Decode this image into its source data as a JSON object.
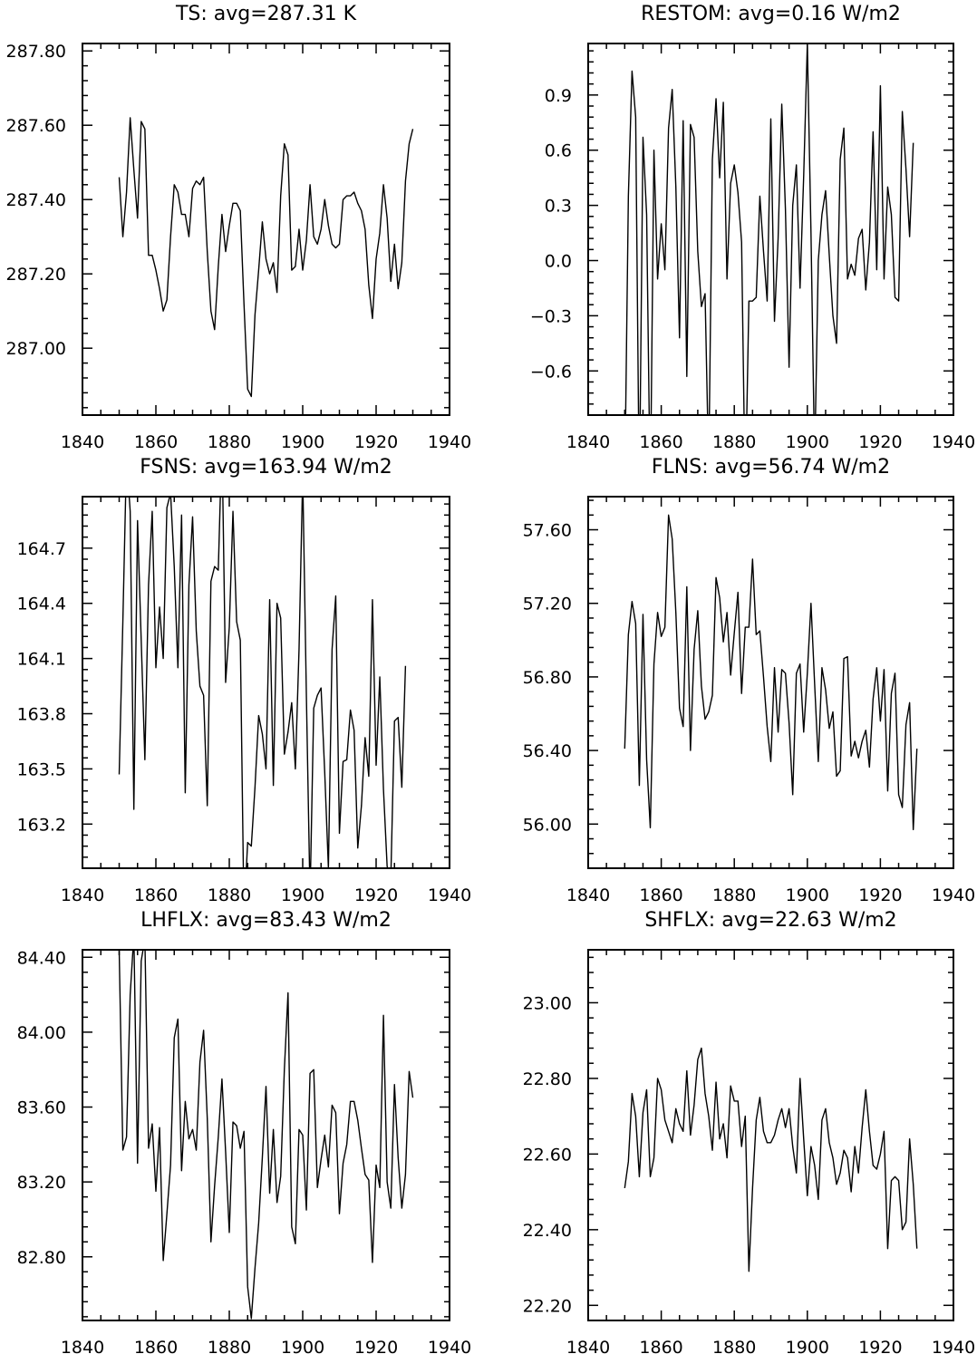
{
  "chart_data": [
    {
      "type": "line",
      "title": "TS: avg=287.31 K",
      "xlim": [
        1840,
        1940
      ],
      "ylim": [
        286.82,
        287.82
      ],
      "xticks": [
        1840,
        1860,
        1880,
        1900,
        1920,
        1940
      ],
      "yticks": [
        {
          "v": 287.0,
          "label": "287.00"
        },
        {
          "v": 287.2,
          "label": "287.20"
        },
        {
          "v": 287.4,
          "label": "287.40"
        },
        {
          "v": 287.6,
          "label": "287.60"
        },
        {
          "v": 287.8,
          "label": "287.80"
        }
      ],
      "x0": 1850,
      "y": [
        287.46,
        287.3,
        287.42,
        287.62,
        287.48,
        287.35,
        287.61,
        287.59,
        287.25,
        287.25,
        287.21,
        287.16,
        287.1,
        287.13,
        287.3,
        287.44,
        287.42,
        287.36,
        287.36,
        287.3,
        287.43,
        287.45,
        287.44,
        287.46,
        287.26,
        287.1,
        287.05,
        287.22,
        287.36,
        287.26,
        287.33,
        287.39,
        287.39,
        287.37,
        287.12,
        286.89,
        286.87,
        287.09,
        287.21,
        287.34,
        287.24,
        287.2,
        287.23,
        287.15,
        287.41,
        287.55,
        287.52,
        287.21,
        287.22,
        287.32,
        287.21,
        287.29,
        287.44,
        287.3,
        287.28,
        287.32,
        287.4,
        287.33,
        287.28,
        287.27,
        287.28,
        287.4,
        287.41,
        287.41,
        287.42,
        287.39,
        287.37,
        287.32,
        287.17,
        287.08,
        287.24,
        287.31,
        287.44,
        287.35,
        287.18,
        287.28,
        287.16,
        287.23,
        287.45,
        287.55,
        287.59
      ]
    },
    {
      "type": "line",
      "title": "RESTOM: avg=0.16 W/m2",
      "xlim": [
        1840,
        1940
      ],
      "ylim": [
        -0.84,
        1.18
      ],
      "xticks": [
        1840,
        1860,
        1880,
        1900,
        1920,
        1940
      ],
      "yticks": [
        {
          "v": -0.6,
          "label": "−0.6"
        },
        {
          "v": -0.3,
          "label": "−0.3"
        },
        {
          "v": 0.0,
          "label": "0.0"
        },
        {
          "v": 0.3,
          "label": "0.3"
        },
        {
          "v": 0.6,
          "label": "0.6"
        },
        {
          "v": 0.9,
          "label": "0.9"
        }
      ],
      "x0": 1850,
      "y": [
        -1.25,
        0.35,
        1.03,
        0.78,
        -1.3,
        0.67,
        0.25,
        -1.3,
        0.6,
        -0.1,
        0.2,
        -0.05,
        0.72,
        0.93,
        0.4,
        -0.42,
        0.76,
        -0.63,
        0.74,
        0.67,
        0.05,
        -0.25,
        -0.18,
        -1.15,
        0.55,
        0.88,
        0.45,
        0.86,
        -0.1,
        0.42,
        0.52,
        0.37,
        0.1,
        -1.3,
        -0.22,
        -0.22,
        -0.2,
        0.35,
        0.05,
        -0.22,
        0.77,
        -0.33,
        0.12,
        0.85,
        0.28,
        -0.58,
        0.3,
        0.52,
        -0.15,
        0.46,
        1.18,
        0.15,
        -1.1,
        0.0,
        0.25,
        0.38,
        0.03,
        -0.3,
        -0.45,
        0.55,
        0.72,
        -0.1,
        -0.02,
        -0.08,
        0.12,
        0.17,
        -0.16,
        0.1,
        0.7,
        -0.05,
        0.95,
        -0.1,
        0.4,
        0.25,
        -0.2,
        -0.22,
        0.81,
        0.5,
        0.13,
        0.64
      ],
      "clip_note": ""
    },
    {
      "type": "line",
      "title": "FSNS: avg=163.94 W/m2",
      "xlim": [
        1840,
        1940
      ],
      "ylim": [
        162.96,
        164.98
      ],
      "xticks": [
        1840,
        1860,
        1880,
        1900,
        1920,
        1940
      ],
      "yticks": [
        {
          "v": 163.2,
          "label": "163.2"
        },
        {
          "v": 163.5,
          "label": "163.5"
        },
        {
          "v": 163.8,
          "label": "163.8"
        },
        {
          "v": 164.1,
          "label": "164.1"
        },
        {
          "v": 164.4,
          "label": "164.4"
        },
        {
          "v": 164.7,
          "label": "164.7"
        }
      ],
      "x0": 1850,
      "y": [
        163.47,
        164.3,
        165.2,
        164.9,
        163.28,
        164.85,
        164.2,
        163.55,
        164.5,
        164.9,
        164.05,
        164.38,
        164.1,
        164.92,
        165.0,
        164.6,
        164.05,
        164.88,
        163.37,
        164.5,
        164.87,
        164.25,
        163.95,
        163.9,
        163.3,
        164.52,
        164.6,
        164.58,
        165.3,
        163.97,
        164.27,
        164.9,
        164.3,
        164.2,
        162.7,
        163.1,
        163.08,
        163.4,
        163.79,
        163.69,
        163.5,
        164.42,
        163.41,
        164.4,
        164.32,
        163.58,
        163.7,
        163.86,
        163.5,
        164.15,
        165.1,
        163.9,
        162.8,
        163.83,
        163.9,
        163.94,
        163.48,
        162.96,
        164.15,
        164.44,
        163.15,
        163.54,
        163.55,
        163.82,
        163.71,
        163.07,
        163.3,
        163.67,
        163.46,
        164.42,
        163.52,
        164.0,
        163.39,
        162.97,
        162.9,
        163.76,
        163.78,
        163.4,
        164.06
      ]
    },
    {
      "type": "line",
      "title": "FLNS: avg=56.74 W/m2",
      "xlim": [
        1840,
        1940
      ],
      "ylim": [
        55.76,
        57.78
      ],
      "xticks": [
        1840,
        1860,
        1880,
        1900,
        1920,
        1940
      ],
      "yticks": [
        {
          "v": 56.0,
          "label": "56.00"
        },
        {
          "v": 56.4,
          "label": "56.40"
        },
        {
          "v": 56.8,
          "label": "56.80"
        },
        {
          "v": 57.2,
          "label": "57.20"
        },
        {
          "v": 57.6,
          "label": "57.60"
        }
      ],
      "x0": 1850,
      "y": [
        56.41,
        57.03,
        57.21,
        57.09,
        56.21,
        57.14,
        56.35,
        55.98,
        56.87,
        57.15,
        57.02,
        57.07,
        57.68,
        57.55,
        57.15,
        56.63,
        56.53,
        57.29,
        56.4,
        56.95,
        57.16,
        56.75,
        56.57,
        56.61,
        56.7,
        57.34,
        57.23,
        56.99,
        57.15,
        56.81,
        57.04,
        57.26,
        56.71,
        57.07,
        57.07,
        57.44,
        57.03,
        57.05,
        56.8,
        56.53,
        56.34,
        56.85,
        56.5,
        56.84,
        56.82,
        56.55,
        56.16,
        56.82,
        56.87,
        56.5,
        56.82,
        57.2,
        56.76,
        56.34,
        56.85,
        56.73,
        56.52,
        56.61,
        56.26,
        56.29,
        56.9,
        56.91,
        56.37,
        56.45,
        56.36,
        56.45,
        56.51,
        56.31,
        56.68,
        56.85,
        56.56,
        56.84,
        56.18,
        56.71,
        56.82,
        56.16,
        56.09,
        56.54,
        56.66,
        55.97,
        56.41
      ]
    },
    {
      "type": "line",
      "title": "LHFLX: avg=83.43 W/m2",
      "xlim": [
        1840,
        1940
      ],
      "ylim": [
        82.46,
        84.44
      ],
      "xticks": [
        1840,
        1860,
        1880,
        1900,
        1920,
        1940
      ],
      "yticks": [
        {
          "v": 82.8,
          "label": "82.80"
        },
        {
          "v": 83.2,
          "label": "83.20"
        },
        {
          "v": 83.6,
          "label": "83.60"
        },
        {
          "v": 84.0,
          "label": "84.00"
        },
        {
          "v": 84.4,
          "label": "84.40"
        }
      ],
      "x0": 1850,
      "y": [
        84.44,
        83.37,
        83.44,
        84.2,
        84.52,
        83.3,
        84.38,
        84.5,
        83.38,
        83.51,
        83.15,
        83.49,
        82.78,
        83.03,
        83.29,
        83.97,
        84.07,
        83.26,
        83.63,
        83.43,
        83.48,
        83.37,
        83.84,
        84.01,
        83.54,
        82.88,
        83.18,
        83.44,
        83.75,
        83.36,
        82.93,
        83.52,
        83.5,
        83.38,
        83.47,
        82.64,
        82.47,
        82.74,
        82.98,
        83.33,
        83.71,
        83.14,
        83.48,
        83.09,
        83.23,
        83.8,
        84.21,
        82.96,
        82.87,
        83.48,
        83.45,
        83.05,
        83.78,
        83.8,
        83.17,
        83.32,
        83.45,
        83.28,
        83.61,
        83.57,
        83.03,
        83.3,
        83.4,
        83.63,
        83.63,
        83.53,
        83.38,
        83.24,
        83.21,
        82.77,
        83.29,
        83.17,
        84.09,
        83.2,
        83.06,
        83.72,
        83.33,
        83.06,
        83.24,
        83.79,
        83.65
      ]
    },
    {
      "type": "line",
      "title": "SHFLX: avg=22.63 W/m2",
      "xlim": [
        1840,
        1940
      ],
      "ylim": [
        22.16,
        23.14
      ],
      "xticks": [
        1840,
        1860,
        1880,
        1900,
        1920,
        1940
      ],
      "yticks": [
        {
          "v": 22.2,
          "label": "22.20"
        },
        {
          "v": 22.4,
          "label": "22.40"
        },
        {
          "v": 22.6,
          "label": "22.60"
        },
        {
          "v": 22.8,
          "label": "22.80"
        },
        {
          "v": 23.0,
          "label": "23.00"
        }
      ],
      "x0": 1850,
      "y": [
        22.51,
        22.58,
        22.76,
        22.7,
        22.54,
        22.71,
        22.77,
        22.54,
        22.59,
        22.8,
        22.77,
        22.69,
        22.66,
        22.63,
        22.72,
        22.68,
        22.66,
        22.82,
        22.65,
        22.73,
        22.85,
        22.88,
        22.76,
        22.7,
        22.61,
        22.79,
        22.64,
        22.68,
        22.59,
        22.78,
        22.74,
        22.74,
        22.62,
        22.7,
        22.29,
        22.51,
        22.69,
        22.75,
        22.66,
        22.63,
        22.63,
        22.65,
        22.69,
        22.72,
        22.67,
        22.72,
        22.62,
        22.55,
        22.8,
        22.64,
        22.49,
        22.62,
        22.57,
        22.48,
        22.69,
        22.72,
        22.63,
        22.59,
        22.52,
        22.55,
        22.61,
        22.59,
        22.5,
        22.62,
        22.55,
        22.67,
        22.77,
        22.66,
        22.57,
        22.56,
        22.6,
        22.66,
        22.35,
        22.53,
        22.54,
        22.53,
        22.4,
        22.42,
        22.64,
        22.52,
        22.35
      ]
    }
  ]
}
